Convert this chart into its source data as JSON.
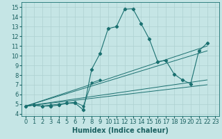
{
  "xlabel": "Humidex (Indice chaleur)",
  "ylabel": "",
  "xlim": [
    -0.5,
    23.5
  ],
  "ylim": [
    3.8,
    15.5
  ],
  "xticks": [
    0,
    1,
    2,
    3,
    4,
    5,
    6,
    7,
    8,
    9,
    10,
    11,
    12,
    13,
    14,
    15,
    16,
    17,
    18,
    19,
    20,
    21,
    22,
    23
  ],
  "yticks": [
    4,
    5,
    6,
    7,
    8,
    9,
    10,
    11,
    12,
    13,
    14,
    15
  ],
  "bg_color": "#c5e5e5",
  "grid_color": "#aed0d0",
  "line_color": "#1a7070",
  "main_x": [
    0,
    1,
    2,
    3,
    4,
    5,
    6,
    7,
    8,
    9,
    10,
    11,
    12,
    13,
    14,
    15,
    16,
    17,
    18,
    19,
    20,
    21,
    22
  ],
  "main_y": [
    4.8,
    4.9,
    4.8,
    4.8,
    4.9,
    5.1,
    5.1,
    4.4,
    8.6,
    10.2,
    12.8,
    13.0,
    14.8,
    14.85,
    13.3,
    11.7,
    9.4,
    9.5,
    8.1,
    7.5,
    7.1,
    10.5,
    11.3
  ],
  "seg2_x": [
    0,
    1,
    2,
    3,
    4,
    5,
    6,
    7,
    8,
    9
  ],
  "seg2_y": [
    4.8,
    4.9,
    4.8,
    4.9,
    5.0,
    5.1,
    5.2,
    4.8,
    7.2,
    7.5
  ],
  "diag_lines": [
    {
      "x": [
        0,
        22
      ],
      "y": [
        4.8,
        11.0
      ]
    },
    {
      "x": [
        0,
        22
      ],
      "y": [
        4.8,
        10.5
      ]
    },
    {
      "x": [
        0,
        22
      ],
      "y": [
        4.8,
        7.5
      ]
    },
    {
      "x": [
        0,
        22
      ],
      "y": [
        4.8,
        7.0
      ]
    }
  ],
  "font_color": "#1a6060",
  "font_size": 7,
  "xlabel_fontsize": 7
}
